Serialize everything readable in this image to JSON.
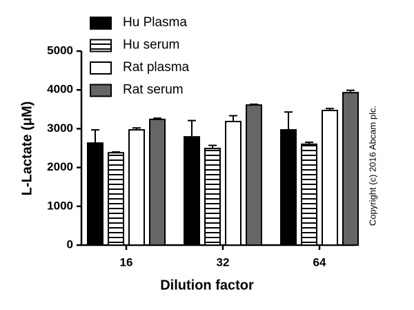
{
  "chart_data": {
    "type": "bar",
    "x_label": "Dilution factor",
    "y_label": "L-Lactate (μM)",
    "annotation": "Copyright (c) 2016 Abcam plc.",
    "categories": [
      "16",
      "32",
      "64"
    ],
    "series": [
      {
        "name": "Hu Plasma",
        "color": "#000000",
        "values": [
          2630,
          2790,
          2970
        ],
        "errors": [
          340,
          420,
          460
        ]
      },
      {
        "name": "Hu serum",
        "color": "#ffffff",
        "hatch": "horizontal",
        "values": [
          2380,
          2490,
          2600
        ],
        "errors": [
          20,
          80,
          50
        ]
      },
      {
        "name": "Rat plasma",
        "color": "#ffffff",
        "values": [
          2970,
          3185,
          3470
        ],
        "errors": [
          50,
          150,
          50
        ]
      },
      {
        "name": "Rat serum",
        "color": "#666666",
        "values": [
          3240,
          3610,
          3930
        ],
        "errors": [
          30,
          20,
          60
        ]
      }
    ],
    "ylim": [
      0,
      5000
    ],
    "yticks": [
      0,
      1000,
      2000,
      3000,
      4000,
      5000
    ],
    "grid": false
  }
}
